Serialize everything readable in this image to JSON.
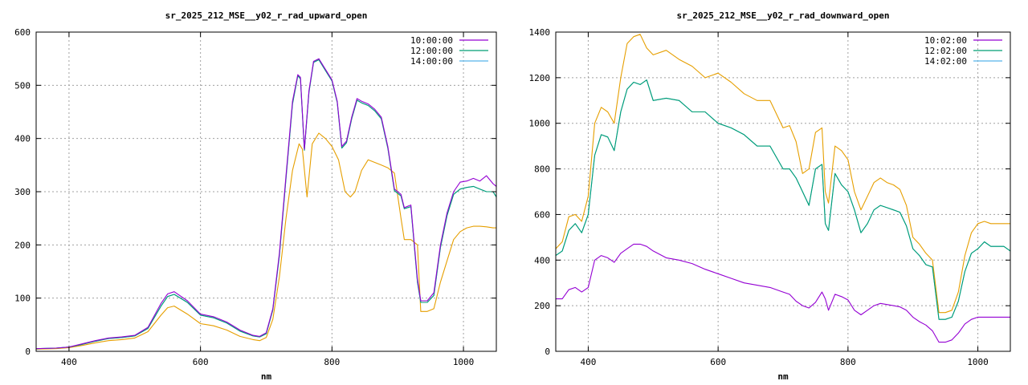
{
  "chart_data": [
    {
      "type": "line",
      "title": "sr_2025_212_MSE__y02_r_rad_upward_open",
      "xlabel": "nm",
      "ylabel": "",
      "xlim": [
        350,
        1050
      ],
      "ylim": [
        0,
        600
      ],
      "xticks": [
        400,
        600,
        800,
        1000
      ],
      "yticks": [
        0,
        100,
        200,
        300,
        400,
        500,
        600
      ],
      "grid": true,
      "legend_position": "top-right",
      "series": [
        {
          "name": "10:00:00",
          "color": "#9400d3",
          "x": [
            350,
            380,
            400,
            420,
            440,
            460,
            480,
            500,
            520,
            540,
            550,
            560,
            580,
            600,
            620,
            640,
            660,
            680,
            690,
            700,
            710,
            720,
            730,
            740,
            748,
            752,
            758,
            765,
            772,
            780,
            790,
            800,
            808,
            815,
            822,
            830,
            838,
            845,
            855,
            865,
            875,
            885,
            895,
            905,
            910,
            920,
            930,
            935,
            945,
            955,
            965,
            975,
            985,
            995,
            1005,
            1015,
            1025,
            1035,
            1045,
            1050
          ],
          "y": [
            5,
            6,
            8,
            14,
            20,
            25,
            27,
            30,
            45,
            90,
            108,
            112,
            95,
            70,
            65,
            55,
            40,
            30,
            28,
            35,
            80,
            185,
            330,
            470,
            520,
            515,
            380,
            490,
            545,
            550,
            530,
            510,
            470,
            385,
            395,
            440,
            475,
            470,
            465,
            455,
            440,
            385,
            305,
            295,
            270,
            275,
            135,
            95,
            95,
            110,
            200,
            260,
            300,
            318,
            320,
            325,
            320,
            330,
            315,
            310
          ]
        },
        {
          "name": "12:00:00",
          "color": "#009e73",
          "x": [
            350,
            380,
            400,
            420,
            440,
            460,
            480,
            500,
            520,
            540,
            550,
            560,
            580,
            600,
            620,
            640,
            660,
            680,
            690,
            700,
            710,
            720,
            730,
            740,
            748,
            752,
            758,
            765,
            772,
            780,
            790,
            800,
            808,
            815,
            822,
            830,
            838,
            845,
            855,
            865,
            875,
            885,
            895,
            905,
            910,
            920,
            930,
            935,
            945,
            955,
            965,
            975,
            985,
            995,
            1005,
            1015,
            1025,
            1035,
            1045,
            1050
          ],
          "y": [
            5,
            6,
            8,
            13,
            19,
            24,
            26,
            29,
            43,
            85,
            103,
            107,
            92,
            68,
            63,
            53,
            38,
            29,
            27,
            33,
            78,
            180,
            325,
            465,
            518,
            512,
            378,
            487,
            543,
            548,
            528,
            508,
            468,
            382,
            392,
            437,
            472,
            467,
            462,
            452,
            437,
            382,
            302,
            292,
            268,
            272,
            130,
            92,
            92,
            105,
            195,
            255,
            295,
            305,
            308,
            310,
            305,
            300,
            300,
            290
          ]
        },
        {
          "name": "14:00:00",
          "color": "#56b4e9",
          "x": [
            350,
            380,
            400,
            420,
            440,
            460,
            480,
            500,
            520,
            540,
            550,
            560,
            580,
            600,
            620,
            640,
            660,
            680,
            690,
            700,
            710,
            720,
            730,
            740,
            748,
            752,
            758,
            765,
            772,
            780,
            790,
            800,
            808,
            815,
            822,
            830,
            838,
            845,
            855,
            865,
            875,
            885,
            895,
            905,
            910,
            920,
            930,
            935,
            945,
            955,
            965,
            975,
            985,
            995,
            1005,
            1015,
            1025,
            1035,
            1045,
            1050
          ],
          "y": [
            5,
            6,
            8,
            13,
            19,
            24,
            26,
            29,
            43,
            85,
            103,
            107,
            92,
            68,
            63,
            53,
            38,
            29,
            27,
            33,
            78,
            180,
            325,
            465,
            518,
            512,
            378,
            487,
            543,
            548,
            528,
            508,
            468,
            382,
            392,
            437,
            472,
            467,
            462,
            452,
            437,
            382,
            302,
            292,
            268,
            272,
            130,
            92,
            92,
            105,
            195,
            255,
            295,
            305,
            308,
            310,
            305,
            300,
            300,
            290
          ]
        },
        {
          "name": "",
          "color": "#e69f00",
          "x": [
            350,
            380,
            400,
            420,
            440,
            460,
            480,
            500,
            520,
            540,
            550,
            560,
            580,
            600,
            620,
            640,
            660,
            680,
            690,
            700,
            710,
            720,
            730,
            740,
            750,
            755,
            762,
            770,
            780,
            790,
            800,
            810,
            820,
            828,
            835,
            845,
            855,
            865,
            875,
            885,
            895,
            905,
            910,
            920,
            930,
            935,
            945,
            955,
            965,
            975,
            985,
            995,
            1005,
            1015,
            1025,
            1035,
            1045,
            1050
          ],
          "y": [
            4,
            5,
            7,
            11,
            16,
            20,
            22,
            25,
            37,
            68,
            82,
            85,
            70,
            52,
            48,
            40,
            28,
            22,
            20,
            26,
            60,
            140,
            250,
            340,
            390,
            380,
            290,
            390,
            410,
            400,
            385,
            360,
            300,
            290,
            300,
            340,
            360,
            355,
            350,
            345,
            335,
            250,
            210,
            210,
            200,
            75,
            75,
            80,
            130,
            170,
            210,
            225,
            232,
            235,
            235,
            234,
            232,
            232
          ]
        }
      ]
    },
    {
      "type": "line",
      "title": "sr_2025_212_MSE__y02_r_rad_downward_open",
      "xlabel": "nm",
      "ylabel": "",
      "xlim": [
        350,
        1050
      ],
      "ylim": [
        0,
        1400
      ],
      "xticks": [
        400,
        600,
        800,
        1000
      ],
      "yticks": [
        0,
        200,
        400,
        600,
        800,
        1000,
        1200,
        1400
      ],
      "grid": true,
      "legend_position": "top-right",
      "series": [
        {
          "name": "10:02:00",
          "color": "#9400d3",
          "x": [
            350,
            360,
            370,
            380,
            390,
            400,
            410,
            420,
            430,
            440,
            450,
            460,
            470,
            480,
            490,
            500,
            520,
            540,
            560,
            580,
            600,
            620,
            640,
            660,
            680,
            700,
            710,
            720,
            730,
            740,
            750,
            760,
            765,
            770,
            780,
            790,
            800,
            810,
            820,
            830,
            840,
            850,
            860,
            870,
            880,
            890,
            900,
            910,
            920,
            930,
            940,
            950,
            960,
            970,
            980,
            990,
            1000,
            1010,
            1020,
            1030,
            1040,
            1050
          ],
          "y": [
            230,
            230,
            270,
            280,
            260,
            280,
            400,
            420,
            410,
            390,
            430,
            450,
            470,
            470,
            460,
            440,
            410,
            400,
            385,
            360,
            340,
            320,
            300,
            290,
            280,
            260,
            250,
            220,
            200,
            190,
            215,
            260,
            230,
            180,
            250,
            240,
            225,
            180,
            160,
            180,
            200,
            210,
            205,
            200,
            195,
            180,
            150,
            130,
            115,
            90,
            40,
            40,
            50,
            80,
            120,
            140,
            150,
            150,
            150,
            150,
            150,
            150
          ]
        },
        {
          "name": "12:02:00",
          "color": "#009e73",
          "x": [
            350,
            360,
            370,
            380,
            390,
            400,
            410,
            420,
            430,
            440,
            450,
            460,
            470,
            480,
            490,
            500,
            520,
            540,
            560,
            580,
            600,
            620,
            640,
            660,
            680,
            700,
            710,
            720,
            730,
            740,
            750,
            760,
            765,
            770,
            780,
            790,
            800,
            810,
            820,
            830,
            840,
            850,
            860,
            870,
            880,
            890,
            900,
            910,
            920,
            930,
            940,
            950,
            960,
            970,
            980,
            990,
            1000,
            1010,
            1020,
            1030,
            1040,
            1050
          ],
          "y": [
            420,
            440,
            530,
            560,
            520,
            600,
            860,
            950,
            940,
            880,
            1050,
            1150,
            1180,
            1170,
            1190,
            1100,
            1110,
            1100,
            1050,
            1050,
            1000,
            980,
            950,
            900,
            900,
            800,
            800,
            760,
            700,
            640,
            800,
            820,
            560,
            530,
            780,
            730,
            700,
            620,
            520,
            560,
            620,
            640,
            630,
            620,
            610,
            550,
            450,
            420,
            380,
            370,
            140,
            140,
            150,
            220,
            350,
            430,
            450,
            480,
            460,
            460,
            460,
            440
          ]
        },
        {
          "name": "14:02:00",
          "color": "#56b4e9",
          "x": [
            350,
            360,
            370,
            380,
            390,
            400,
            410,
            420,
            430,
            440,
            450,
            460,
            470,
            480,
            490,
            500,
            520,
            540,
            560,
            580,
            600,
            620,
            640,
            660,
            680,
            700,
            710,
            720,
            730,
            740,
            750,
            760,
            765,
            770,
            780,
            790,
            800,
            810,
            820,
            830,
            840,
            850,
            860,
            870,
            880,
            890,
            900,
            910,
            920,
            930,
            940,
            950,
            960,
            970,
            980,
            990,
            1000,
            1010,
            1020,
            1030,
            1040,
            1050
          ],
          "y": [
            420,
            440,
            530,
            560,
            520,
            600,
            860,
            950,
            940,
            880,
            1050,
            1150,
            1180,
            1170,
            1190,
            1100,
            1110,
            1100,
            1050,
            1050,
            1000,
            980,
            950,
            900,
            900,
            800,
            800,
            760,
            700,
            640,
            800,
            820,
            560,
            530,
            780,
            730,
            700,
            620,
            520,
            560,
            620,
            640,
            630,
            620,
            610,
            550,
            450,
            420,
            380,
            370,
            140,
            140,
            150,
            220,
            350,
            430,
            450,
            480,
            460,
            460,
            460,
            440
          ]
        },
        {
          "name": "",
          "color": "#e69f00",
          "x": [
            350,
            360,
            370,
            380,
            390,
            400,
            410,
            420,
            430,
            440,
            450,
            460,
            470,
            480,
            490,
            500,
            520,
            540,
            560,
            580,
            600,
            620,
            640,
            660,
            680,
            700,
            710,
            720,
            730,
            740,
            750,
            760,
            765,
            770,
            780,
            790,
            800,
            810,
            820,
            830,
            840,
            850,
            860,
            870,
            880,
            890,
            900,
            910,
            920,
            930,
            940,
            950,
            960,
            970,
            980,
            990,
            1000,
            1010,
            1020,
            1030,
            1040,
            1050
          ],
          "y": [
            450,
            480,
            590,
            600,
            570,
            680,
            1000,
            1070,
            1050,
            1000,
            1200,
            1350,
            1380,
            1390,
            1330,
            1300,
            1320,
            1280,
            1250,
            1200,
            1220,
            1180,
            1130,
            1100,
            1100,
            980,
            990,
            920,
            780,
            800,
            960,
            980,
            700,
            650,
            900,
            880,
            840,
            700,
            620,
            680,
            740,
            760,
            740,
            730,
            710,
            640,
            500,
            470,
            430,
            400,
            170,
            170,
            180,
            260,
            420,
            520,
            560,
            570,
            560,
            560,
            560,
            560
          ]
        }
      ]
    }
  ]
}
